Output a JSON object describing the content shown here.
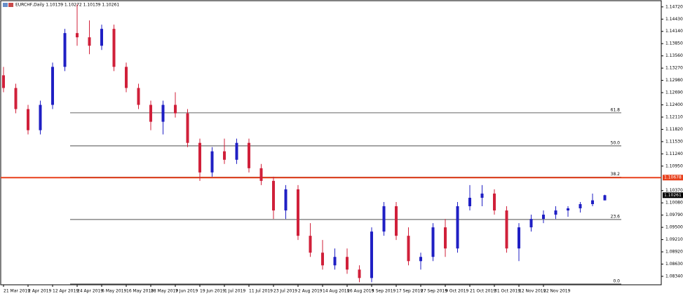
{
  "chart_data": {
    "type": "candlestick",
    "title": "EURCHF,Daily 1.10139 1.10272 1.10139 1.10261",
    "categories": [
      "21 Mar 2019",
      null,
      "2 Apr 2019",
      null,
      "12 Apr 2019",
      null,
      "24 Apr 2019",
      null,
      "6 May 2019",
      null,
      "16 May 2019",
      null,
      "28 May 2019",
      null,
      "7 Jun 2019",
      null,
      "19 Jun 2019",
      null,
      "1 Jul 2019",
      null,
      "11 Jul 2019",
      null,
      "23 Jul 2019",
      null,
      "2 Aug 2019",
      null,
      "14 Aug 2019",
      null,
      "26 Aug 2019",
      null,
      "5 Sep 2019",
      null,
      "17 Sep 2019",
      null,
      "27 Sep 2019",
      null,
      "9 Oct 2019",
      null,
      "21 Oct 2019",
      null,
      "31 Oct 2019",
      null,
      "12 Nov 2019",
      null,
      "22 Nov 2019",
      null,
      null,
      null,
      null,
      null
    ],
    "open": [
      1.131,
      1.128,
      1.123,
      1.118,
      1.124,
      1.133,
      1.141,
      1.14,
      1.138,
      1.142,
      1.133,
      1.128,
      1.124,
      1.12,
      1.124,
      1.122,
      1.115,
      1.108,
      1.113,
      1.111,
      1.115,
      1.109,
      1.106,
      1.099,
      1.104,
      1.093,
      1.089,
      1.086,
      1.088,
      1.085,
      1.083,
      1.094,
      1.1,
      1.093,
      1.087,
      1.088,
      1.095,
      1.09,
      1.1,
      1.102,
      1.103,
      1.099,
      1.09,
      1.095,
      1.097,
      1.098,
      1.099,
      1.0995,
      1.1005,
      1.10139
    ],
    "high": [
      1.133,
      1.129,
      1.124,
      1.125,
      1.134,
      1.142,
      1.1478,
      1.144,
      1.143,
      1.143,
      1.134,
      1.129,
      1.125,
      1.125,
      1.127,
      1.123,
      1.116,
      1.114,
      1.116,
      1.116,
      1.116,
      1.11,
      1.107,
      1.105,
      1.105,
      1.096,
      1.092,
      1.09,
      1.09,
      1.086,
      1.095,
      1.101,
      1.101,
      1.095,
      1.089,
      1.096,
      1.097,
      1.101,
      1.105,
      1.105,
      1.104,
      1.1,
      1.096,
      1.098,
      1.099,
      1.1,
      1.1,
      1.101,
      1.103,
      1.10272
    ],
    "low": [
      1.127,
      1.122,
      1.117,
      1.117,
      1.123,
      1.132,
      1.138,
      1.136,
      1.137,
      1.132,
      1.127,
      1.123,
      1.118,
      1.117,
      1.121,
      1.114,
      1.106,
      1.107,
      1.11,
      1.11,
      1.108,
      1.105,
      1.097,
      1.097,
      1.092,
      1.088,
      1.085,
      1.085,
      1.084,
      1.082,
      1.082,
      1.093,
      1.092,
      1.086,
      1.085,
      1.087,
      1.088,
      1.089,
      1.099,
      1.1,
      1.098,
      1.089,
      1.087,
      1.094,
      1.096,
      1.097,
      1.0975,
      1.0985,
      1.1,
      1.10139
    ],
    "close": [
      1.128,
      1.123,
      1.118,
      1.124,
      1.133,
      1.141,
      1.14,
      1.138,
      1.142,
      1.133,
      1.128,
      1.124,
      1.12,
      1.124,
      1.122,
      1.115,
      1.108,
      1.113,
      1.111,
      1.115,
      1.109,
      1.106,
      1.099,
      1.104,
      1.093,
      1.089,
      1.086,
      1.088,
      1.085,
      1.083,
      1.094,
      1.1,
      1.093,
      1.087,
      1.088,
      1.095,
      1.09,
      1.1,
      1.102,
      1.103,
      1.099,
      1.09,
      1.095,
      1.097,
      1.098,
      1.099,
      1.0995,
      1.1005,
      1.1014,
      1.10261
    ],
    "up_color": "#1f1fc4",
    "down_color": "#d0203a",
    "ylim": [
      1.0814,
      1.1485
    ],
    "yticks": [
      {
        "value": 1.1472,
        "label": "1.14720"
      },
      {
        "value": 1.1443,
        "label": "1.14430"
      },
      {
        "value": 1.1414,
        "label": "1.14140"
      },
      {
        "value": 1.1385,
        "label": "1.13850"
      },
      {
        "value": 1.1356,
        "label": "1.13560"
      },
      {
        "value": 1.1327,
        "label": "1.13270"
      },
      {
        "value": 1.1298,
        "label": "1.12980"
      },
      {
        "value": 1.1269,
        "label": "1.12690"
      },
      {
        "value": 1.124,
        "label": "1.12400"
      },
      {
        "value": 1.1211,
        "label": "1.12110"
      },
      {
        "value": 1.1182,
        "label": "1.11820"
      },
      {
        "value": 1.1153,
        "label": "1.11530"
      },
      {
        "value": 1.1124,
        "label": "1.11240"
      },
      {
        "value": 1.1095,
        "label": "1.10950"
      },
      {
        "value": 1.1037,
        "label": "1.10370"
      },
      {
        "value": 1.1008,
        "label": "1.10080"
      },
      {
        "value": 1.0979,
        "label": "1.09790"
      },
      {
        "value": 1.095,
        "label": "1.09500"
      },
      {
        "value": 1.0921,
        "label": "1.09210"
      },
      {
        "value": 1.0892,
        "label": "1.08920"
      },
      {
        "value": 1.0863,
        "label": "1.08630"
      },
      {
        "value": 1.0834,
        "label": "1.08340"
      }
    ],
    "fibo_levels": [
      {
        "value": 1.12211,
        "label": "61.8"
      },
      {
        "value": 1.1143,
        "label": "50.0"
      },
      {
        "value": 1.1069,
        "label": "38.2"
      },
      {
        "value": 1.09686,
        "label": "23.6"
      },
      {
        "value": 1.08158,
        "label": "0.0"
      }
    ],
    "hline": {
      "value": 1.10678,
      "label": "1.10678",
      "color": "#e8401c"
    },
    "last_price": {
      "value": 1.10261,
      "label": "1.10261"
    }
  }
}
